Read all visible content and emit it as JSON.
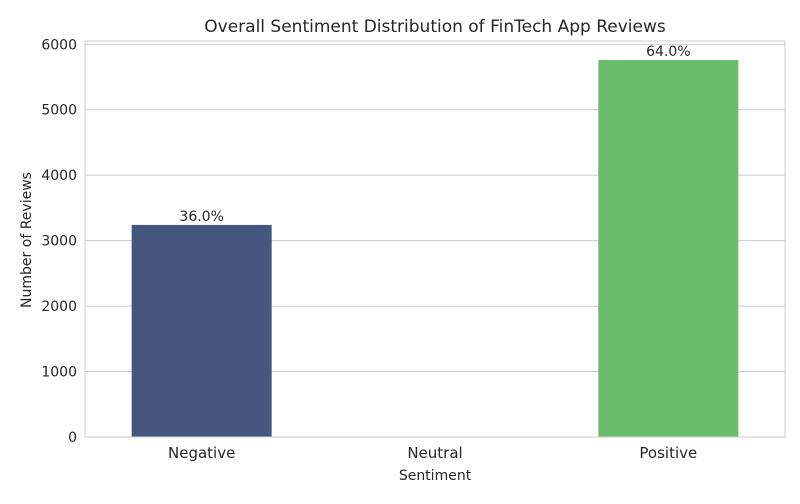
{
  "chart_data": {
    "type": "bar",
    "title": "Overall Sentiment Distribution of FinTech App Reviews",
    "xlabel": "Sentiment",
    "ylabel": "Number of Reviews",
    "categories": [
      "Negative",
      "Neutral",
      "Positive"
    ],
    "values": [
      3240,
      0,
      5760
    ],
    "bar_labels": [
      "36.0%",
      "",
      "64.0%"
    ],
    "colors": [
      "#46577f",
      "#2a8c8c",
      "#6bbd6c"
    ],
    "ylim": [
      0,
      6000
    ],
    "yticks": [
      0,
      1000,
      2000,
      3000,
      4000,
      5000,
      6000
    ],
    "grid": true
  }
}
